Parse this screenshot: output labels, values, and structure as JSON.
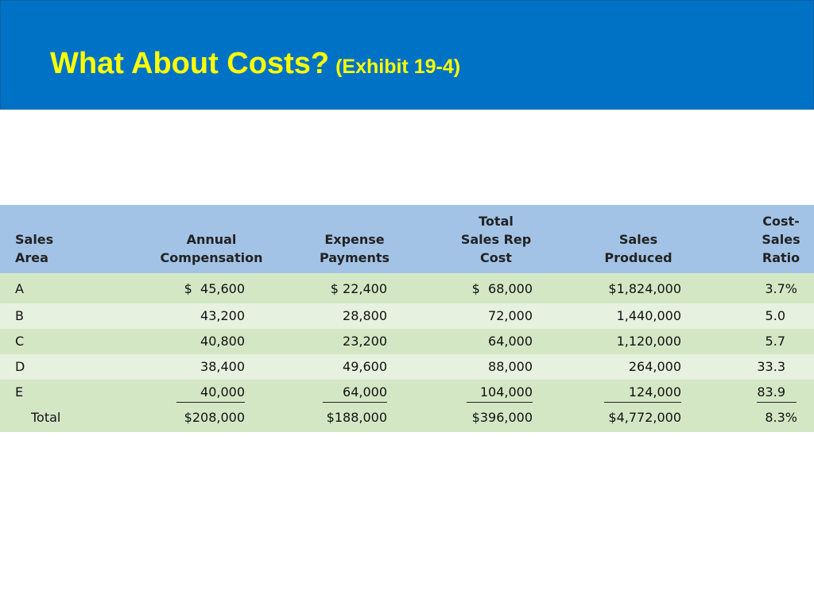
{
  "slide": {
    "title": "What About Costs?",
    "subtitle": "(Exhibit 19-4)",
    "header_color": "#0072c6",
    "title_color": "#ffff00"
  },
  "table": {
    "headers": {
      "area": "Sales\nArea",
      "comp": "Annual\nCompensation",
      "exp": "Expense\nPayments",
      "total": "Total\nSales Rep\nCost",
      "sales": "Sales\nProduced",
      "ratio": "Cost-\nSales\nRatio"
    },
    "rows": [
      {
        "area": "A",
        "comp": "$  45,600",
        "exp": "$ 22,400",
        "total": "$  68,000",
        "sales": "$1,824,000",
        "ratio": "3.7%"
      },
      {
        "area": "B",
        "comp": "43,200",
        "exp": "28,800",
        "total": "72,000",
        "sales": "1,440,000",
        "ratio": "5.0"
      },
      {
        "area": "C",
        "comp": "40,800",
        "exp": "23,200",
        "total": "64,000",
        "sales": "1,120,000",
        "ratio": "5.7"
      },
      {
        "area": "D",
        "comp": "38,400",
        "exp": "49,600",
        "total": "88,000",
        "sales": "264,000",
        "ratio": "33.3"
      },
      {
        "area": "E",
        "comp": "40,000",
        "exp": "64,000",
        "total": "104,000",
        "sales": "124,000",
        "ratio": "83.9"
      }
    ],
    "total": {
      "area": "Total",
      "comp": "$208,000",
      "exp": "$188,000",
      "total": "$396,000",
      "sales": "$4,772,000",
      "ratio": "8.3%"
    },
    "header_color": "#a3c3e6",
    "row_colors": [
      "#d4e7c5",
      "#e7f1df"
    ]
  }
}
